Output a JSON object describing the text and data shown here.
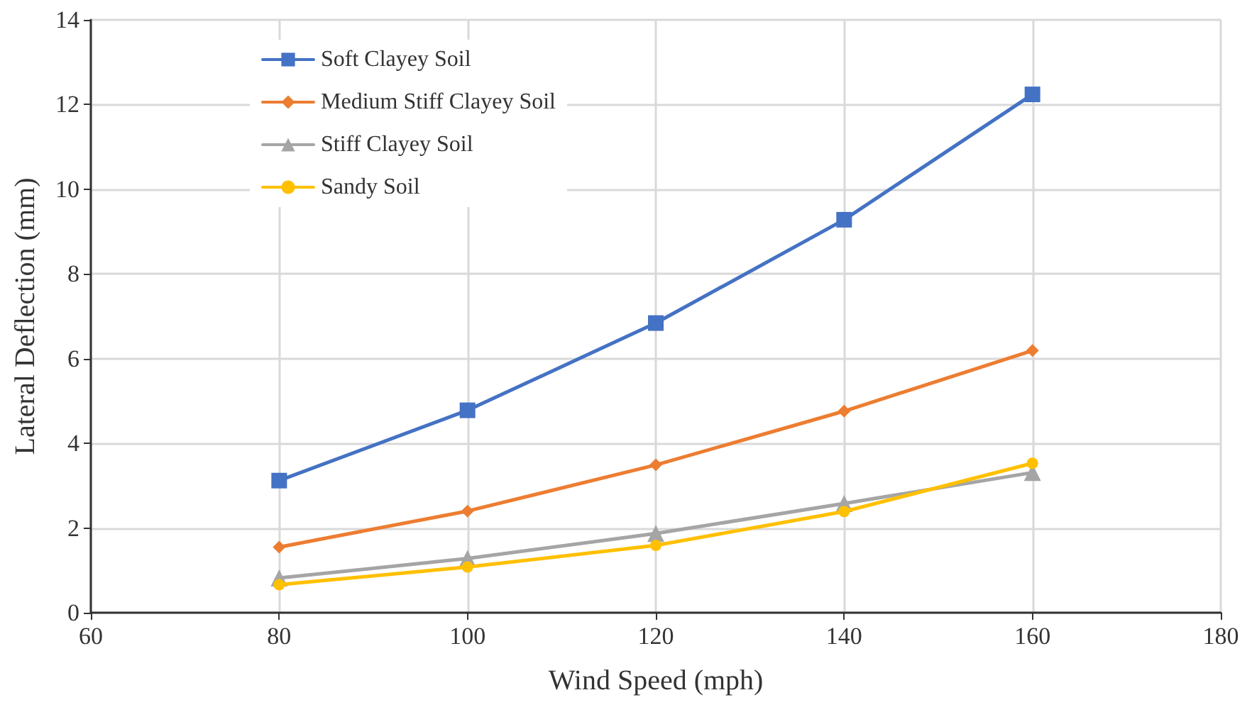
{
  "chart_data": {
    "type": "line",
    "xlabel": "Wind Speed (mph)",
    "ylabel": "Lateral Deflection (mm)",
    "x": [
      80,
      100,
      120,
      140,
      160
    ],
    "series": [
      {
        "name": "Soft Clayey Soil",
        "color": "#4472c4",
        "marker": "square",
        "values": [
          3.12,
          4.78,
          6.84,
          9.28,
          12.24
        ]
      },
      {
        "name": "Medium Stiff Clayey Soil",
        "color": "#ed7d31",
        "marker": "diamond",
        "values": [
          1.55,
          2.4,
          3.49,
          4.76,
          6.19
        ]
      },
      {
        "name": "Stiff Clayey Soil",
        "color": "#a5a5a5",
        "marker": "triangle",
        "values": [
          0.82,
          1.28,
          1.87,
          2.58,
          3.31
        ]
      },
      {
        "name": "Sandy Soil",
        "color": "#ffc000",
        "marker": "circle",
        "values": [
          0.66,
          1.08,
          1.59,
          2.39,
          3.53
        ]
      }
    ],
    "xlim": [
      60,
      180
    ],
    "xticks": [
      60,
      80,
      100,
      120,
      140,
      160,
      180
    ],
    "ylim": [
      0,
      14
    ],
    "yticks": [
      0,
      2,
      4,
      6,
      8,
      10,
      12,
      14
    ],
    "grid": true,
    "legend": "top left"
  }
}
